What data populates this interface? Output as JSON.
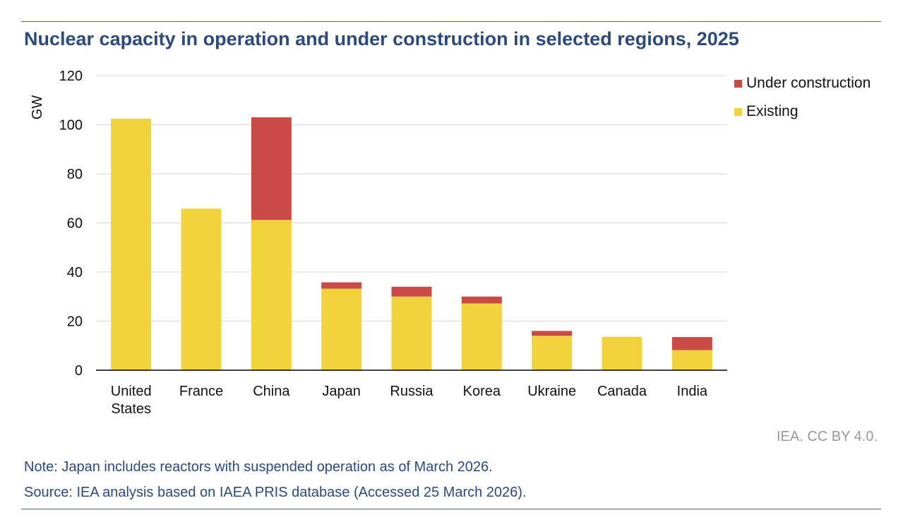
{
  "title": "Nuclear capacity in operation and under construction in selected regions, 2025",
  "colors": {
    "existing": "#f2d33b",
    "under_construction": "#c94a47",
    "grid": "#d9d9d9",
    "axis": "#000000",
    "title": "#2c4a7e"
  },
  "chart_data": {
    "type": "bar",
    "stacked": true,
    "title": "Nuclear capacity in operation and under construction in selected regions, 2025",
    "xlabel": "",
    "ylabel": "GW",
    "ylim": [
      0,
      120
    ],
    "yticks": [
      0,
      20,
      40,
      60,
      80,
      100,
      120
    ],
    "grid": true,
    "legend_position": "top-right",
    "categories": [
      [
        "United",
        "States"
      ],
      [
        "France"
      ],
      [
        "China"
      ],
      [
        "Japan"
      ],
      [
        "Russia"
      ],
      [
        "Korea"
      ],
      [
        "Ukraine"
      ],
      [
        "Canada"
      ],
      [
        "India"
      ]
    ],
    "series": [
      {
        "name": "Existing",
        "color": "#f2d33b",
        "values": [
          102.5,
          65.8,
          61.2,
          33.2,
          30.0,
          27.2,
          14.0,
          13.6,
          8.2
        ]
      },
      {
        "name": "Under construction",
        "color": "#c94a47",
        "values": [
          0,
          0,
          41.8,
          2.6,
          4.0,
          2.8,
          2.0,
          0,
          5.3
        ]
      }
    ]
  },
  "legend": [
    {
      "label": "Under construction",
      "color": "#c94a47"
    },
    {
      "label": "Existing",
      "color": "#f2d33b"
    }
  ],
  "credit": "IEA. CC BY 4.0.",
  "note": "Note: Japan includes reactors with suspended operation as of March 2026.",
  "source": "Source: IEA analysis based on IAEA PRIS database (Accessed 25 March 2026)."
}
